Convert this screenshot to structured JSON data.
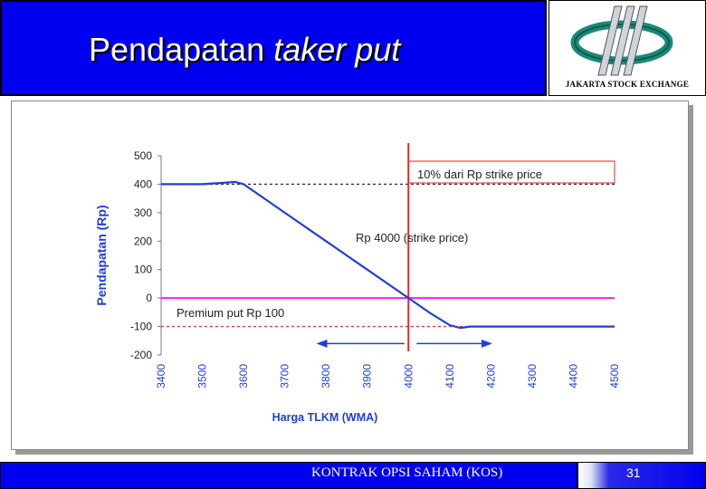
{
  "slide": {
    "title_part1": "Pendapatan",
    "title_part2": "taker put"
  },
  "logo": {
    "caption": "JAKARTA STOCK EXCHANGE",
    "accent_color": "#1a8a78"
  },
  "footer": {
    "text": "KONTRAK OPSI SAHAM (KOS)",
    "page": "31"
  },
  "colors": {
    "band": "#0000ee",
    "payoff_line": "#1f3fd6",
    "strike_line": "#ee2222",
    "premium_line": "#ee22ee",
    "reference_dotted": "#333333",
    "annotation_red": "#ff3333"
  },
  "chart_data": {
    "type": "line",
    "xlabel": "Harga TLKM (WMA)",
    "ylabel": "Pendapatan (Rp)",
    "x_ticks": [
      "3400",
      "3500",
      "3600",
      "3700",
      "3800",
      "3900",
      "4000",
      "4100",
      "4200",
      "4300",
      "4400",
      "4500"
    ],
    "y_ticks": [
      "500",
      "400",
      "300",
      "200",
      "100",
      "0",
      "-100",
      "-200"
    ],
    "xlim": [
      3400,
      4500
    ],
    "ylim": [
      -200,
      500
    ],
    "series": [
      {
        "x": [
          3400,
          3450,
          3500,
          3550,
          3580,
          3600,
          3650,
          3700,
          3800,
          3900,
          4000,
          4050,
          4100,
          4125,
          4150,
          4200,
          4300,
          4400,
          4500
        ],
        "y": [
          400,
          400,
          400,
          405,
          408,
          400,
          350,
          300,
          200,
          100,
          0,
          -50,
          -95,
          -105,
          -100,
          -100,
          -100,
          -100,
          -100
        ]
      }
    ],
    "reference_lines": {
      "strike_x": 4000,
      "premium_y": 0,
      "upper_dotted_y": 400,
      "lower_dotted_y": -100
    },
    "annotations": {
      "upper": "10% dari Rp strike price",
      "strike": "Rp 4000 (strike price)",
      "premium": "Premium put Rp 100"
    },
    "arrows": {
      "left_from": 3990,
      "left_to": 3780,
      "right_from": 4020,
      "right_to": 4200,
      "y": -160
    },
    "grid": false,
    "legend": "none"
  }
}
